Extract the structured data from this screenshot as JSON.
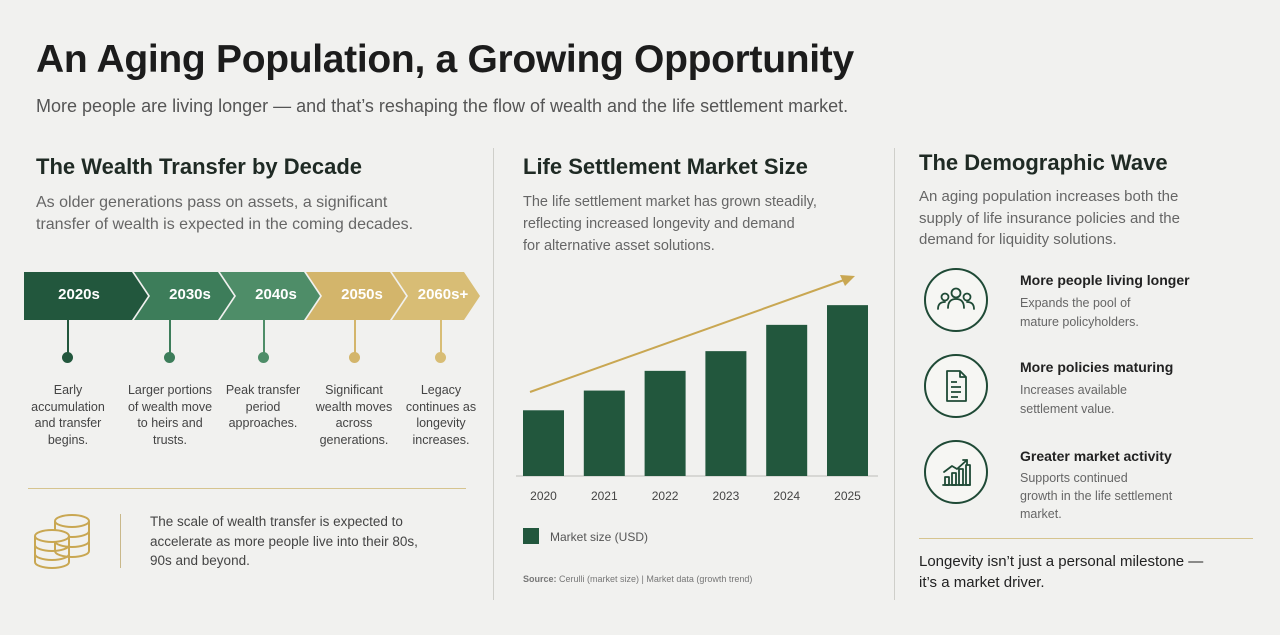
{
  "header": {
    "title": "An Aging Population, a Growing Opportunity",
    "subtitle": "More people are living longer — and that’s reshaping the flow of wealth and the life settlement market."
  },
  "wealth": {
    "title": "The Wealth Transfer by Decade",
    "desc": [
      "As older generations pass on assets, a significant",
      "transfer of wealth is expected in the coming decades."
    ],
    "timeline": [
      {
        "label": "2020s",
        "text": "Early accumulation and transfer begins.",
        "color": "#22573d"
      },
      {
        "label": "2030s",
        "text": "Larger portions of wealth move to heirs and trusts.",
        "color": "#3d7d5a"
      },
      {
        "label": "2040s",
        "text": "Peak transfer period approaches.",
        "color": "#4e8d68"
      },
      {
        "label": "2050s",
        "text": "Significant wealth moves across generations.",
        "color": "#d3b56b"
      },
      {
        "label": "2060s+",
        "text": "Legacy continues as longevity increases.",
        "color": "#d8bd75"
      }
    ],
    "scale_text": "The scale of wealth transfer is expected to accelerate as more people live into their 80s, 90s and beyond."
  },
  "market": {
    "title": "Life Settlement Market Size",
    "desc": [
      "The life settlement market has grown steadily,",
      "reflecting increased longevity and demand",
      "for alternative asset solutions."
    ],
    "legend": "Market size (USD)",
    "source_label": "Source:",
    "source_text": "Cerulli (market size)  |  Market data (growth trend)"
  },
  "chart_data": {
    "type": "bar",
    "categories": [
      "2020",
      "2021",
      "2022",
      "2023",
      "2024",
      "2025"
    ],
    "series": [
      {
        "name": "Market size (USD)",
        "values": [
          1.0,
          1.3,
          1.6,
          1.9,
          2.3,
          2.6
        ]
      }
    ],
    "ylim": [
      0,
      2.8
    ],
    "trend_arrow": true,
    "colors": {
      "bar": "#22573d",
      "arrow": "#c9a752"
    }
  },
  "demo": {
    "title": "The Demographic Wave",
    "desc": [
      "An aging population increases both the",
      "supply of life insurance policies and the",
      "demand for liquidity solutions."
    ],
    "features": [
      {
        "icon": "people-icon",
        "title": "More people living longer",
        "desc": [
          "Expands the pool of",
          "mature policyholders."
        ]
      },
      {
        "icon": "document-icon",
        "title": "More policies maturing",
        "desc": [
          "Increases available",
          "settlement value."
        ]
      },
      {
        "icon": "growth-chart-icon",
        "title": "Greater market activity",
        "desc": [
          "Supports continued",
          "growth in the life settlement",
          "market."
        ]
      }
    ],
    "closing": [
      "Longevity isn’t just a personal milestone —",
      "it’s a market driver."
    ]
  }
}
